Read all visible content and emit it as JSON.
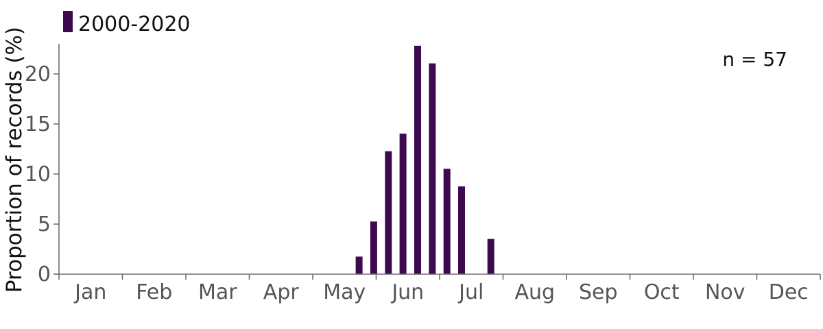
{
  "chart_data": {
    "type": "bar",
    "title": "",
    "xlabel": "",
    "ylabel": "Proportion of records (%)",
    "ylim": [
      0,
      23
    ],
    "yticks": [
      0,
      5,
      10,
      15,
      20
    ],
    "months": [
      "Jan",
      "Feb",
      "Mar",
      "Apr",
      "May",
      "Jun",
      "Jul",
      "Aug",
      "Sep",
      "Oct",
      "Nov",
      "Dec"
    ],
    "x_unit": "week of year",
    "x": [
      21,
      22,
      23,
      24,
      25,
      26,
      27,
      28,
      30
    ],
    "series": [
      {
        "name": "2000-2020",
        "color": "#3d0a4f",
        "values": [
          1.75,
          5.26,
          12.28,
          14.04,
          22.81,
          21.05,
          10.53,
          8.77,
          3.51
        ]
      }
    ],
    "annotation": "n = 57",
    "legend_position": "top-left",
    "grid": false
  }
}
